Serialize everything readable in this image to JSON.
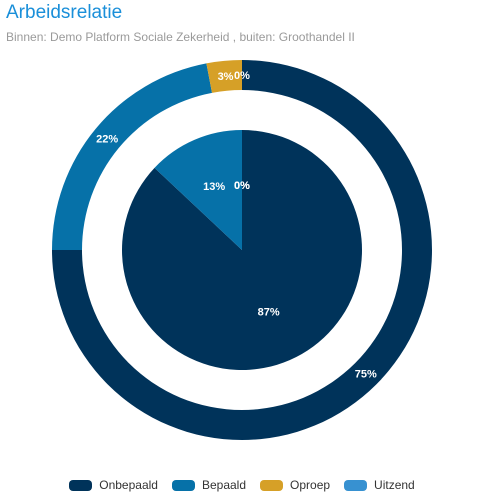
{
  "title": "Arbeidsrelatie",
  "subtitle": "Binnen: Demo Platform Sociale Zekerheid , buiten: Groothandel II",
  "legend": [
    {
      "label": "Onbepaald",
      "color": "#00335a"
    },
    {
      "label": "Bepaald",
      "color": "#0671a8"
    },
    {
      "label": "Oproep",
      "color": "#d6a027"
    },
    {
      "label": "Uitzend",
      "color": "#3791d1"
    }
  ],
  "chart_data": {
    "type": "pie",
    "categories": [
      "Onbepaald",
      "Bepaald",
      "Oproep",
      "Uitzend"
    ],
    "colors": [
      "#00335a",
      "#0671a8",
      "#d6a027",
      "#3791d1"
    ],
    "series": [
      {
        "ring": "inner",
        "values": [
          87,
          13,
          0,
          0
        ],
        "labels": [
          "87%",
          "13%",
          "0%",
          "0%"
        ]
      },
      {
        "ring": "outer",
        "values": [
          75,
          22,
          3,
          0
        ],
        "labels": [
          "75%",
          "22%",
          "3%",
          "0%"
        ]
      }
    ]
  }
}
